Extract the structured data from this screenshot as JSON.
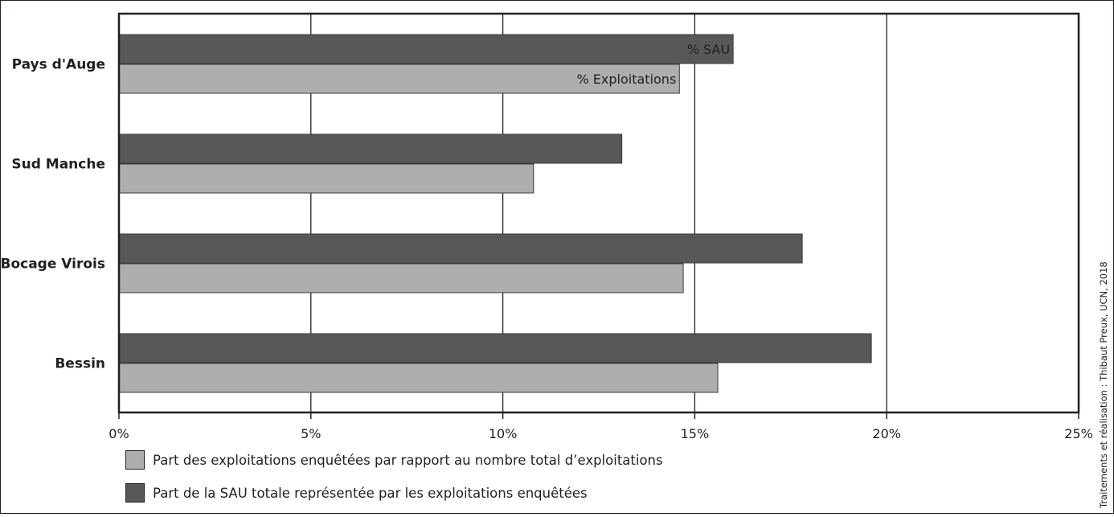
{
  "chart_data": {
    "type": "bar",
    "orientation": "horizontal",
    "categories": [
      "Pays d'Auge",
      "Sud Manche",
      "Bocage Virois",
      "Bessin"
    ],
    "series": [
      {
        "name": "% SAU",
        "values": [
          16.0,
          13.1,
          17.8,
          19.6
        ],
        "color": "#58585a"
      },
      {
        "name": "% Exploitations",
        "values": [
          14.6,
          10.8,
          14.7,
          15.6
        ],
        "color": "#adaeb0"
      }
    ],
    "xlim": [
      0,
      25
    ],
    "x_ticks": [
      0,
      5,
      10,
      15,
      20,
      25
    ],
    "x_tick_labels": [
      "0%",
      "5%",
      "10%",
      "15%",
      "20%",
      "25%"
    ],
    "grid": "vertical",
    "legend": [
      {
        "label": "Part des exploitations enquêtées par rapport au nombre total d’exploitations",
        "color": "#adaeb0"
      },
      {
        "label": "Part de la SAU totale représentée par les exploitations enquêtées",
        "color": "#58585a"
      }
    ],
    "legend_position": "bottom-left"
  },
  "credit": "Traitements et réalisation : Thibaut Preux, UCN, 2018"
}
